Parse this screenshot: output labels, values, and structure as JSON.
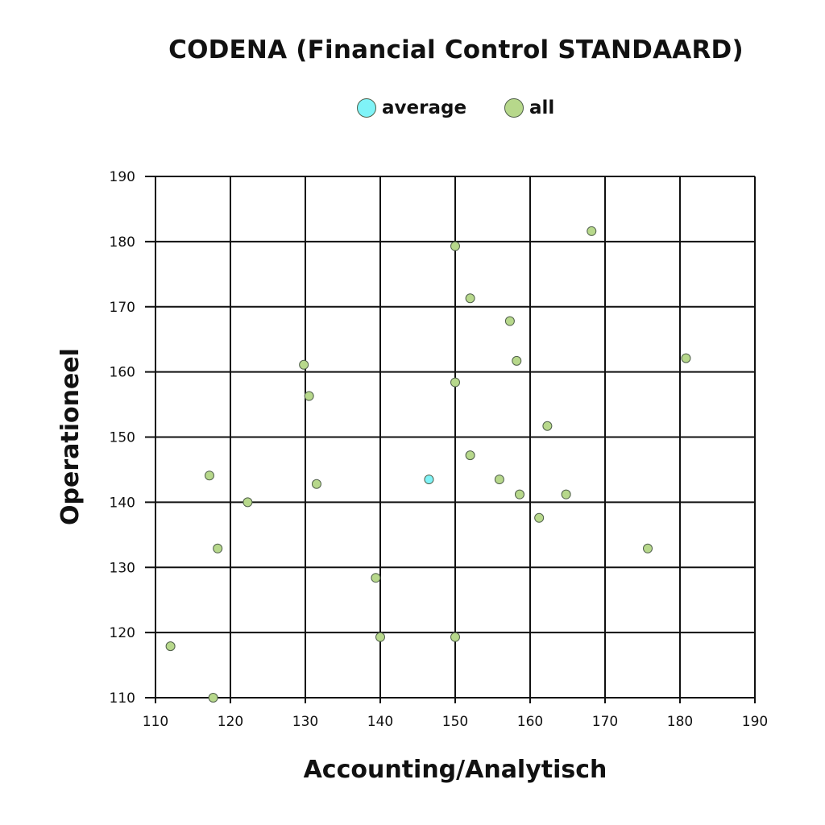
{
  "chart_data": {
    "type": "scatter",
    "title": "CODENA (Financial Control STANDAARD)",
    "xlabel": "Accounting/Analytisch",
    "ylabel": "Operationeel",
    "xlim": [
      110,
      190
    ],
    "ylim": [
      110,
      190
    ],
    "xticks": [
      "110",
      "120",
      "130",
      "140",
      "150",
      "160",
      "170",
      "180",
      "190"
    ],
    "yticks": [
      "110",
      "120",
      "130",
      "140",
      "150",
      "160",
      "170",
      "180",
      "190"
    ],
    "grid": true,
    "legend_position": "top-center",
    "series": [
      {
        "name": "average",
        "color": "#7ff3f7",
        "points": [
          {
            "x": 146.5,
            "y": 143.5
          }
        ]
      },
      {
        "name": "all",
        "color": "#b7d88b",
        "points": [
          {
            "x": 168.2,
            "y": 181.6
          },
          {
            "x": 150.0,
            "y": 179.3
          },
          {
            "x": 152.0,
            "y": 171.3
          },
          {
            "x": 157.3,
            "y": 167.8
          },
          {
            "x": 158.2,
            "y": 161.7
          },
          {
            "x": 180.8,
            "y": 162.1
          },
          {
            "x": 129.8,
            "y": 161.1
          },
          {
            "x": 150.0,
            "y": 158.4
          },
          {
            "x": 130.5,
            "y": 156.3
          },
          {
            "x": 162.3,
            "y": 151.7
          },
          {
            "x": 152.0,
            "y": 147.2
          },
          {
            "x": 117.2,
            "y": 144.1
          },
          {
            "x": 155.9,
            "y": 143.5
          },
          {
            "x": 131.5,
            "y": 142.8
          },
          {
            "x": 158.6,
            "y": 141.2
          },
          {
            "x": 164.8,
            "y": 141.2
          },
          {
            "x": 122.3,
            "y": 140.0
          },
          {
            "x": 161.2,
            "y": 137.6
          },
          {
            "x": 118.3,
            "y": 132.9
          },
          {
            "x": 175.7,
            "y": 132.9
          },
          {
            "x": 139.4,
            "y": 128.4
          },
          {
            "x": 140.0,
            "y": 119.3
          },
          {
            "x": 150.0,
            "y": 119.3
          },
          {
            "x": 112.0,
            "y": 117.9
          },
          {
            "x": 117.7,
            "y": 110.0
          }
        ]
      }
    ]
  }
}
